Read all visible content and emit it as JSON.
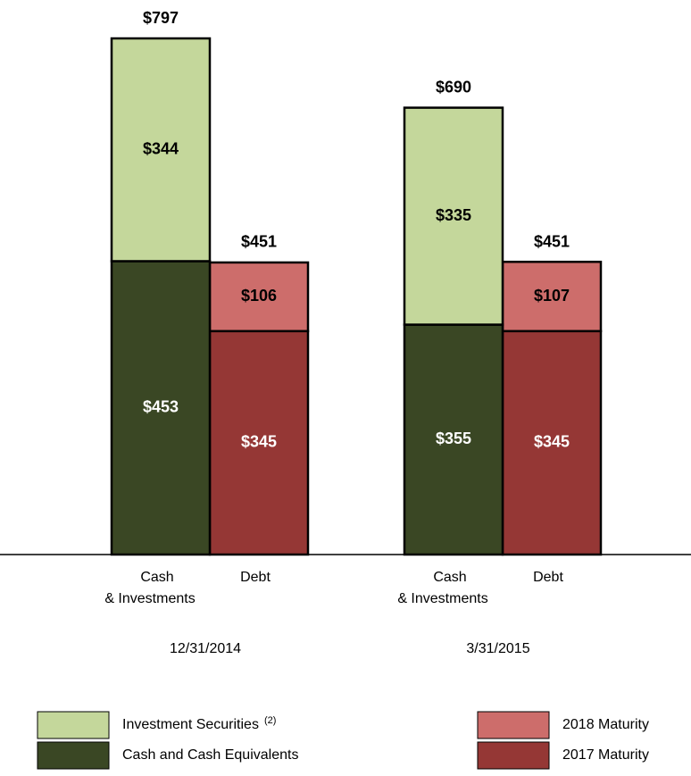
{
  "chart_data": {
    "type": "stacked_bar",
    "groups": [
      "12/31/2014",
      "3/31/2015"
    ],
    "categories": [
      [
        "Cash",
        "& Investments"
      ],
      [
        "Debt"
      ],
      [
        "Cash",
        "& Investments"
      ],
      [
        "Debt"
      ]
    ],
    "series": [
      {
        "name": "Investment Securities",
        "note": "(2)",
        "color": "#c4d79b",
        "label_color": "#000000",
        "values": [
          344,
          null,
          335,
          null
        ],
        "value_labels": [
          "$344",
          null,
          "$335",
          null
        ]
      },
      {
        "name": "Cash and Cash Equivalents",
        "color": "#3a4724",
        "label_color": "#ffffff",
        "values": [
          453,
          null,
          355,
          null
        ],
        "value_labels": [
          "$453",
          null,
          "$355",
          null
        ]
      },
      {
        "name": "2018 Maturity",
        "color": "#cd6d6b",
        "label_color": "#000000",
        "values": [
          null,
          106,
          null,
          107
        ],
        "value_labels": [
          null,
          "$106",
          null,
          "$107"
        ]
      },
      {
        "name": "2017 Maturity",
        "color": "#953735",
        "label_color": "#ffffff",
        "values": [
          null,
          345,
          null,
          345
        ],
        "value_labels": [
          null,
          "$345",
          null,
          "$345"
        ]
      }
    ],
    "totals": [
      797,
      451,
      690,
      451
    ],
    "total_labels": [
      "$797",
      "$451",
      "$690",
      "$451"
    ]
  }
}
